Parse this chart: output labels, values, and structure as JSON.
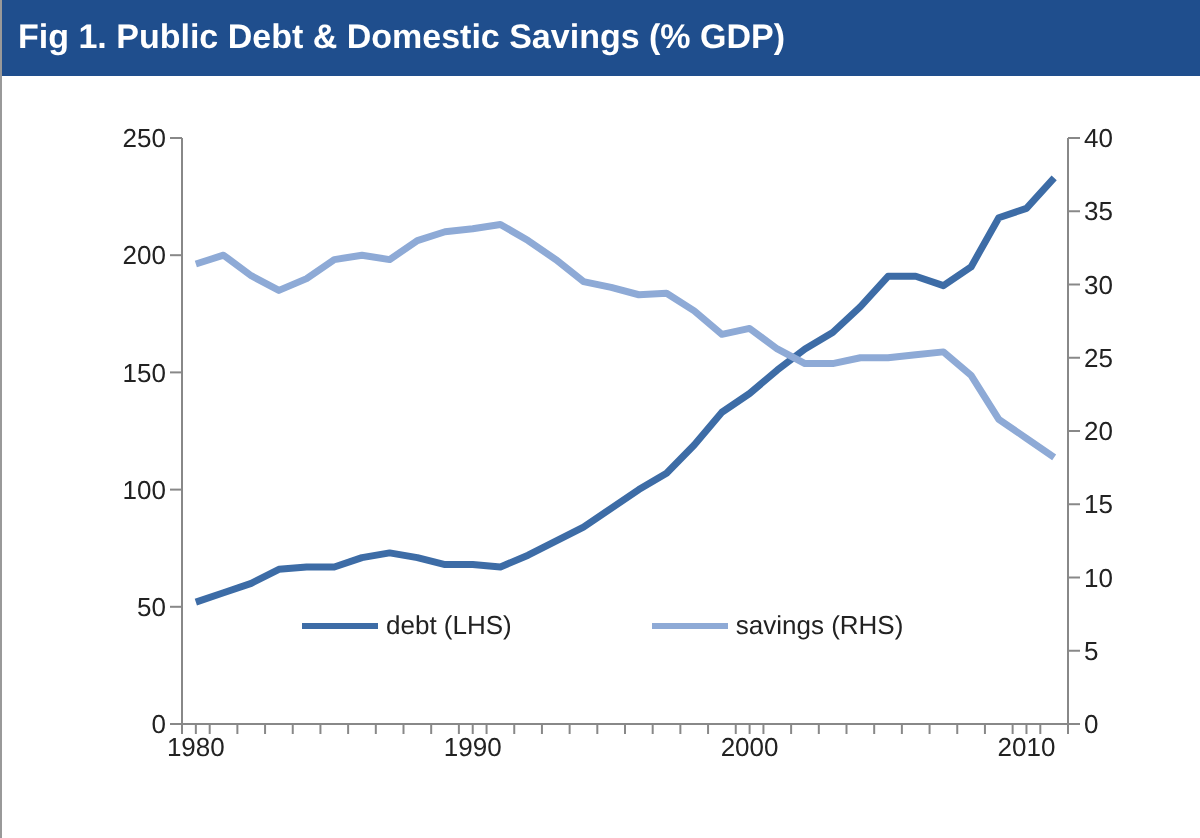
{
  "chart_data": {
    "type": "line",
    "title": "Fig 1. Public Debt & Domestic Savings (% GDP)",
    "x": [
      1980,
      1981,
      1982,
      1983,
      1984,
      1985,
      1986,
      1987,
      1988,
      1989,
      1990,
      1991,
      1992,
      1993,
      1994,
      1995,
      1996,
      1997,
      1998,
      1999,
      2000,
      2001,
      2002,
      2003,
      2004,
      2005,
      2006,
      2007,
      2008,
      2009,
      2010,
      2011
    ],
    "series": [
      {
        "name": "debt (LHS)",
        "color": "#3d6ca6",
        "values": [
          52,
          56,
          60,
          66,
          67,
          67,
          71,
          73,
          71,
          68,
          68,
          67,
          72,
          78,
          84,
          92,
          100,
          107,
          119,
          133,
          141,
          151,
          160,
          167,
          178,
          191,
          191,
          187,
          195,
          216,
          220,
          233
        ]
      },
      {
        "name": "savings (RHS)",
        "color": "#8eaad6",
        "axis": "y2",
        "values": [
          31.4,
          32,
          30.6,
          29.6,
          30.4,
          31.7,
          32,
          31.7,
          33,
          33.6,
          33.8,
          34.1,
          33,
          31.7,
          30.2,
          29.8,
          29.3,
          29.4,
          28.2,
          26.6,
          27,
          25.6,
          24.6,
          24.6,
          25,
          25,
          25.2,
          25.4,
          23.8,
          20.8,
          19.5,
          18.2
        ]
      }
    ],
    "xlim": [
      1979.5,
      2011.5
    ],
    "xticks": [
      1980,
      1990,
      2000,
      2010,
      {
        "value": 1979.5,
        "label": null
      },
      {
        "value": 1980.5,
        "label": null
      },
      {
        "value": 1981.5,
        "label": null
      },
      {
        "value": 1982.5,
        "label": null
      },
      {
        "value": 1983.5,
        "label": null
      },
      {
        "value": 1984.5,
        "label": null
      },
      {
        "value": 1985.5,
        "label": null
      },
      {
        "value": 1986.5,
        "label": null
      },
      {
        "value": 1987.5,
        "label": null
      },
      {
        "value": 1988.5,
        "label": null
      },
      {
        "value": 1989.5,
        "label": null
      },
      {
        "value": 1990.5,
        "label": null
      },
      {
        "value": 1991.5,
        "label": null
      },
      {
        "value": 1992.5,
        "label": null
      },
      {
        "value": 1993.5,
        "label": null
      },
      {
        "value": 1994.5,
        "label": null
      },
      {
        "value": 1995.5,
        "label": null
      },
      {
        "value": 1996.5,
        "label": null
      },
      {
        "value": 1997.5,
        "label": null
      },
      {
        "value": 1998.5,
        "label": null
      },
      {
        "value": 1999.5,
        "label": null
      },
      {
        "value": 2000.5,
        "label": null
      },
      {
        "value": 2001.5,
        "label": null
      },
      {
        "value": 2002.5,
        "label": null
      },
      {
        "value": 2003.5,
        "label": null
      },
      {
        "value": 2004.5,
        "label": null
      },
      {
        "value": 2005.5,
        "label": null
      },
      {
        "value": 2006.5,
        "label": null
      },
      {
        "value": 2007.5,
        "label": null
      },
      {
        "value": 2008.5,
        "label": null
      },
      {
        "value": 2009.5,
        "label": null
      },
      {
        "value": 2010.5,
        "label": null
      },
      {
        "value": 2011.5,
        "label": null
      }
    ],
    "ylim": [
      0,
      250
    ],
    "yticks": [
      0,
      50,
      100,
      150,
      200,
      250
    ],
    "y2lim": [
      0,
      40
    ],
    "y2ticks": [
      0,
      5,
      10,
      15,
      20,
      25,
      30,
      35,
      40
    ],
    "grid": false,
    "legend": "bottom",
    "marker": "none",
    "line_style": "solid"
  }
}
